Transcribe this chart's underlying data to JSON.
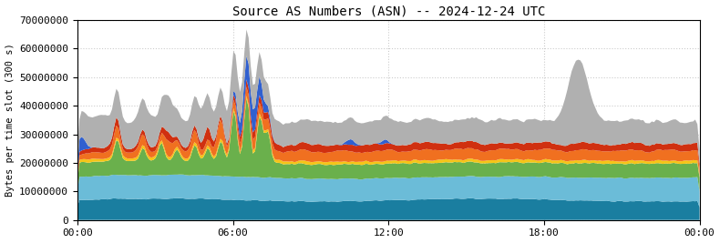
{
  "title": "Source AS Numbers (ASN) -- 2024-12-24 UTC",
  "ylabel": "Bytes per time slot (300 s)",
  "xlabel_ticks": [
    "00:00",
    "06:00",
    "12:00",
    "18:00",
    "00:00"
  ],
  "ylim": [
    0,
    70000000
  ],
  "yticks": [
    0,
    10000000,
    20000000,
    30000000,
    40000000,
    50000000,
    60000000,
    70000000
  ],
  "colors": {
    "teal": "#1a7ea0",
    "light_blue": "#6bbcd8",
    "green": "#6ab04c",
    "yellow": "#f5c518",
    "orange": "#f07020",
    "red": "#d03010",
    "blue_hl": "#3060d0",
    "gray": "#b0b0b0"
  },
  "n_points": 288,
  "background_color": "#ffffff",
  "grid_color": "#cccccc"
}
